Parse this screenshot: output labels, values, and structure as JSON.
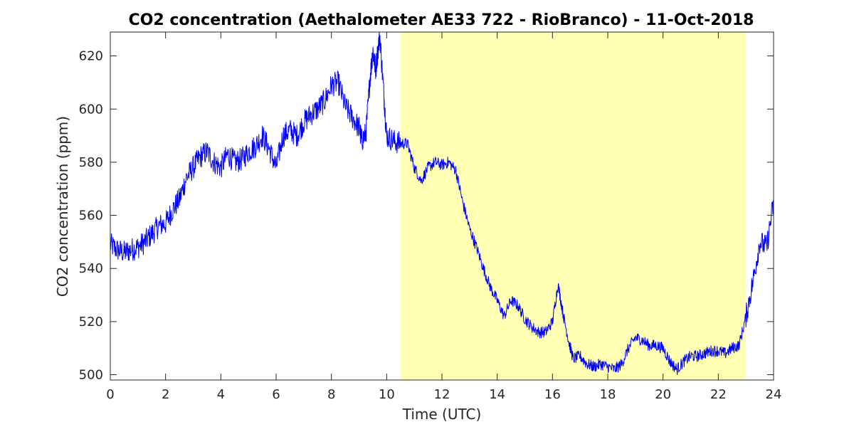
{
  "chart_data": {
    "type": "line",
    "title": "CO2 concentration (Aethalometer AE33 722 - RioBranco) - 11-Oct-2018",
    "xlabel": "Time (UTC)",
    "ylabel": "CO2 concentration (ppm)",
    "xlim": [
      0,
      24
    ],
    "ylim": [
      498,
      629
    ],
    "xticks": [
      0,
      2,
      4,
      6,
      8,
      10,
      12,
      14,
      16,
      18,
      20,
      22,
      24
    ],
    "yticks": [
      500,
      520,
      540,
      560,
      580,
      600,
      620
    ],
    "grid": false,
    "shaded_region": {
      "x_start": 10.5,
      "x_end": 23.0,
      "color": "#ffffb4"
    },
    "series": [
      {
        "color": "#0000ff",
        "x": [
          0,
          0.25,
          0.5,
          0.75,
          1.0,
          1.25,
          1.5,
          1.75,
          2.0,
          2.25,
          2.5,
          2.75,
          3.0,
          3.25,
          3.5,
          3.75,
          4.0,
          4.25,
          4.5,
          4.75,
          5.0,
          5.25,
          5.5,
          5.75,
          6.0,
          6.25,
          6.5,
          6.75,
          7.0,
          7.25,
          7.5,
          7.75,
          8.0,
          8.25,
          8.5,
          8.75,
          9.0,
          9.1,
          9.25,
          9.4,
          9.5,
          9.6,
          9.75,
          9.9,
          10.0,
          10.25,
          10.5,
          10.75,
          11.0,
          11.25,
          11.5,
          11.75,
          12.0,
          12.25,
          12.5,
          12.75,
          13.0,
          13.25,
          13.5,
          13.75,
          14.0,
          14.25,
          14.5,
          14.75,
          15.0,
          15.25,
          15.5,
          15.75,
          16.0,
          16.2,
          16.4,
          16.6,
          16.75,
          17.0,
          17.25,
          17.5,
          17.75,
          18.0,
          18.25,
          18.5,
          18.75,
          19.0,
          19.25,
          19.5,
          19.75,
          20.0,
          20.25,
          20.5,
          20.75,
          21.0,
          21.25,
          21.5,
          21.75,
          22.0,
          22.25,
          22.5,
          22.75,
          23.0,
          23.25,
          23.5,
          23.75,
          24.0
        ],
        "y": [
          549,
          547,
          546,
          547,
          548,
          550,
          553,
          556,
          557,
          562,
          566,
          574,
          578,
          582,
          584,
          580,
          578,
          583,
          580,
          581,
          584,
          586,
          590,
          585,
          578,
          590,
          592,
          590,
          595,
          598,
          600,
          603,
          609,
          610,
          601,
          597,
          593,
          588,
          591,
          612,
          622,
          615,
          628,
          605,
          590,
          588,
          587,
          587,
          578,
          573,
          578,
          580,
          579,
          580,
          577,
          565,
          555,
          548,
          540,
          533,
          528,
          522,
          528,
          526,
          521,
          518,
          516,
          516,
          520,
          534,
          522,
          512,
          506,
          507,
          504,
          503,
          504,
          503,
          502,
          504,
          510,
          514,
          513,
          511,
          511,
          510,
          505,
          502,
          505,
          507,
          507,
          508,
          509,
          509,
          508,
          510,
          511,
          522,
          535,
          550,
          548,
          565
        ]
      }
    ]
  }
}
